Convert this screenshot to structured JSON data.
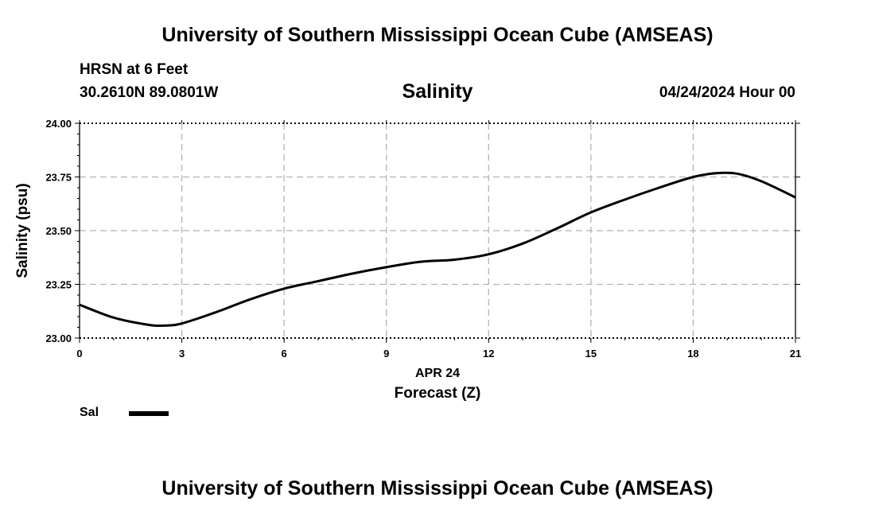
{
  "header": {
    "title": "University of Southern Mississippi Ocean Cube (AMSEAS)",
    "station": "HRSN at 6 Feet",
    "coordinates": "30.2610N  89.0801W",
    "variable": "Salinity",
    "datetime": "04/24/2024 Hour 00"
  },
  "footer": {
    "title": "University of Southern Mississippi Ocean Cube (AMSEAS)"
  },
  "legend": {
    "label": "Sal"
  },
  "chart_data": {
    "type": "line",
    "title": "Salinity",
    "xlabel": "Forecast (Z)",
    "xsublabel": "APR 24",
    "ylabel": "Salinity (psu)",
    "xlim": [
      0,
      21
    ],
    "ylim": [
      23.0,
      24.0
    ],
    "xticks": [
      "0",
      "3",
      "6",
      "9",
      "12",
      "15",
      "18",
      "21"
    ],
    "yticks": [
      "23.00",
      "23.25",
      "23.50",
      "23.75",
      "24.00"
    ],
    "grid": true,
    "legend_position": "bottom-left",
    "series": [
      {
        "name": "Sal",
        "color": "#000000",
        "x": [
          0,
          1,
          2,
          2.5,
          3,
          4,
          5,
          6,
          7,
          8,
          9,
          10,
          11,
          12,
          13,
          14,
          15,
          16,
          17,
          18,
          18.7,
          19.3,
          20,
          21
        ],
        "values": [
          23.155,
          23.095,
          23.062,
          23.058,
          23.068,
          23.12,
          23.18,
          23.23,
          23.265,
          23.3,
          23.33,
          23.355,
          23.365,
          23.39,
          23.44,
          23.51,
          23.585,
          23.645,
          23.7,
          23.75,
          23.768,
          23.765,
          23.73,
          23.655
        ]
      }
    ]
  }
}
